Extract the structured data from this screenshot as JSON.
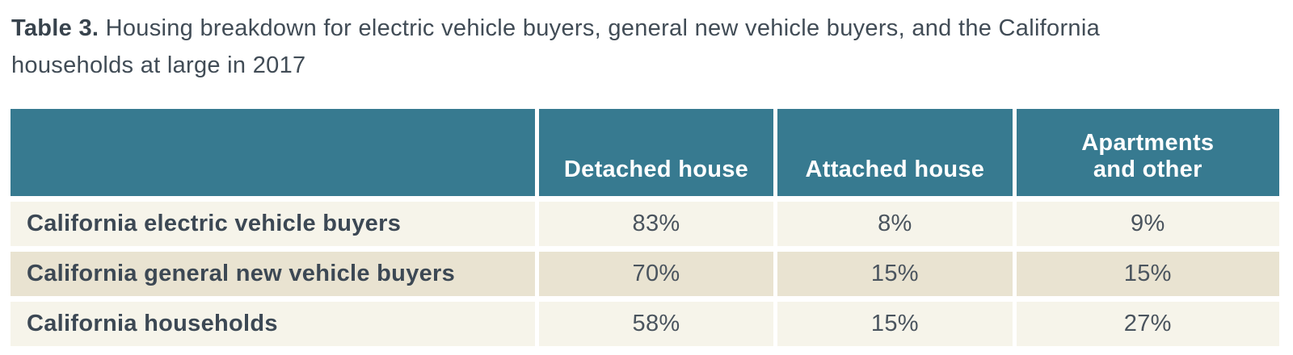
{
  "caption": {
    "label": "Table 3.",
    "text": "Housing breakdown for electric vehicle buyers, general new vehicle buyers, and the California households at large in 2017"
  },
  "table": {
    "columns": [
      "",
      "Detached house",
      "Attached house",
      "Apartments and other"
    ],
    "rows": [
      {
        "label": "California electric vehicle buyers",
        "values": [
          "83%",
          "8%",
          "9%"
        ]
      },
      {
        "label": "California general new vehicle buyers",
        "values": [
          "70%",
          "15%",
          "15%"
        ]
      },
      {
        "label": "California households",
        "values": [
          "58%",
          "15%",
          "27%"
        ]
      }
    ]
  },
  "colors": {
    "header_bg": "#377a90",
    "header_text": "#ffffff",
    "row_light_bg": "#f6f4ea",
    "row_dark_bg": "#e9e3d1",
    "label_text": "#3c4854",
    "value_text": "#4a545e",
    "caption_text": "#414c56"
  }
}
